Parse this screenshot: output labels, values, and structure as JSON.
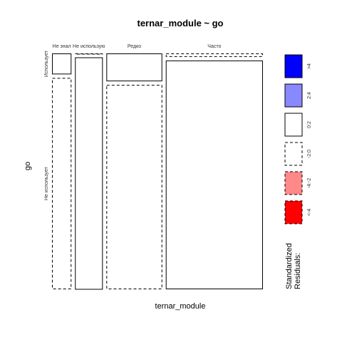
{
  "chart_data": {
    "type": "mosaic",
    "title": "ternar_module ~ go",
    "xlabel": "ternar_module",
    "ylabel": "go",
    "x_categories": [
      "Не знал",
      "Не использую",
      "Редко",
      "Часто"
    ],
    "y_categories": [
      "Использует",
      "Не использует"
    ],
    "column_proportions": [
      0.097,
      0.139,
      0.279,
      0.485
    ],
    "cells": [
      {
        "x": "Не знал",
        "y": "Использует",
        "proportion": 0.09,
        "residual_class": "0:2"
      },
      {
        "x": "Не знал",
        "y": "Не использует",
        "proportion": 0.91,
        "residual_class": "-2:0"
      },
      {
        "x": "Не использую",
        "y": "Использует",
        "proportion": 0.0,
        "residual_class": "-2:0"
      },
      {
        "x": "Не использую",
        "y": "Не использует",
        "proportion": 1.0,
        "residual_class": "0:2"
      },
      {
        "x": "Редко",
        "y": "Использует",
        "proportion": 0.12,
        "residual_class": "0:2"
      },
      {
        "x": "Редко",
        "y": "Не использует",
        "proportion": 0.88,
        "residual_class": "-2:0"
      },
      {
        "x": "Часто",
        "y": "Использует",
        "proportion": 0.015,
        "residual_class": "-2:0"
      },
      {
        "x": "Часто",
        "y": "Не использует",
        "proportion": 0.985,
        "residual_class": "0:2"
      }
    ],
    "legend": {
      "title_lines": [
        "Standardized",
        "Residuals:"
      ],
      "placement": "right",
      "items": [
        {
          "label": ">4",
          "fill": "#0000ff",
          "dashed": false
        },
        {
          "label": "2:4",
          "fill": "#8888ff",
          "dashed": false
        },
        {
          "label": "0:2",
          "fill": "#ffffff",
          "dashed": false
        },
        {
          "label": "-2:0",
          "fill": "#ffffff",
          "dashed": true
        },
        {
          "label": "-4:-2",
          "fill": "#ff8888",
          "dashed": true
        },
        {
          "label": "<-4",
          "fill": "#ff0000",
          "dashed": true
        }
      ]
    }
  }
}
